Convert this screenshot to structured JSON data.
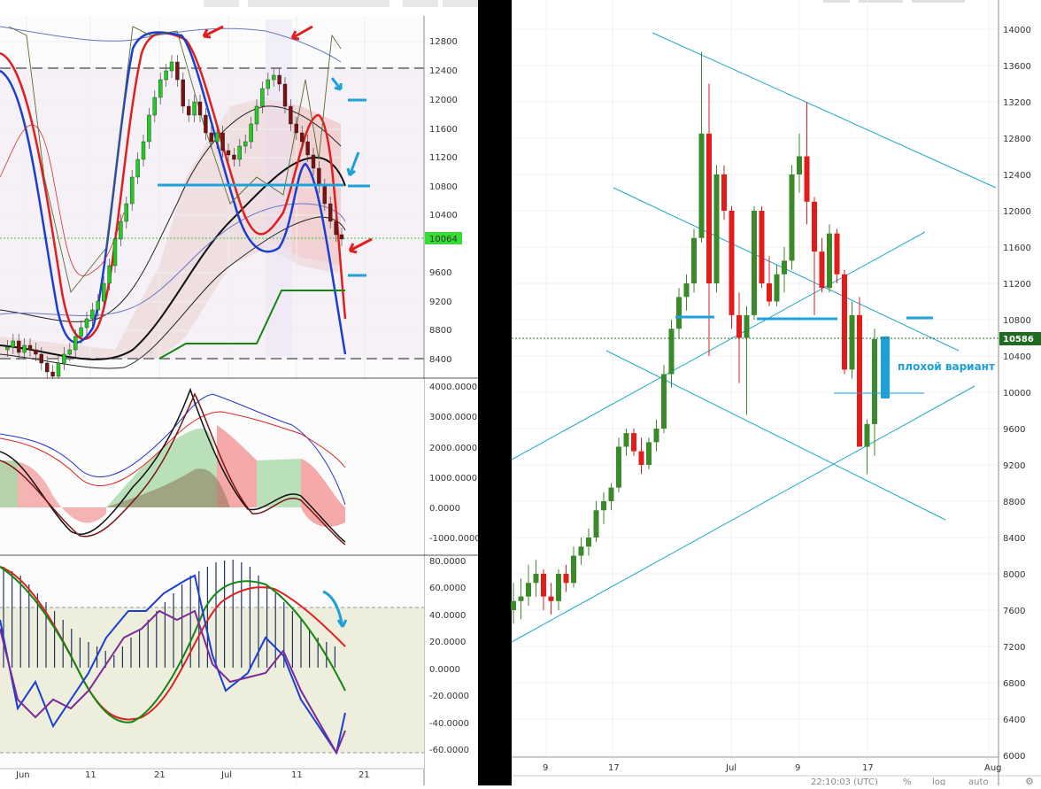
{
  "left_chart": {
    "price_panel": {
      "y_ticks": [
        "12800",
        "12400",
        "12000",
        "11600",
        "11200",
        "10800",
        "10400",
        "10064",
        "9600",
        "9200",
        "8800",
        "8400"
      ],
      "last_price": "10064",
      "ylim": [
        8000,
        13100
      ]
    },
    "macd_panel": {
      "y_ticks": [
        "4000.0000",
        "3000.0000",
        "2000.0000",
        "1000.0000",
        "0.0000",
        "-1000.0000"
      ]
    },
    "stoch_panel": {
      "y_ticks": [
        "80.0000",
        "60.0000",
        "40.0000",
        "20.0000",
        "0.0000",
        "-20.0000",
        "-40.0000",
        "-60.0000"
      ]
    },
    "x_ticks": [
      "Jun",
      "11",
      "21",
      "Jul",
      "11",
      "21"
    ]
  },
  "chart_data": {
    "type": "candlestick",
    "series_name": "",
    "x_labels": [
      "9",
      "17",
      "Jul",
      "9",
      "17",
      "Aug"
    ],
    "y_ticks": [
      "14000",
      "13600",
      "13200",
      "12800",
      "12400",
      "12000",
      "11600",
      "11200",
      "10800",
      "10400",
      "10000",
      "9600",
      "9200",
      "8800",
      "8400",
      "8000",
      "7600",
      "7200",
      "6800",
      "6400",
      "6000"
    ],
    "ylim": [
      5800,
      14200
    ],
    "last_price": "10586",
    "annotation": "плохой вариант",
    "status": {
      "time": "22:10:03 (UTC)",
      "percent": "%",
      "log": "log",
      "auto": "auto"
    },
    "candles": [
      {
        "o": 7600,
        "h": 7900,
        "l": 7450,
        "c": 7700
      },
      {
        "o": 7700,
        "h": 7950,
        "l": 7500,
        "c": 7750
      },
      {
        "o": 7750,
        "h": 8100,
        "l": 7650,
        "c": 7900
      },
      {
        "o": 7900,
        "h": 8150,
        "l": 7750,
        "c": 8000
      },
      {
        "o": 8000,
        "h": 8050,
        "l": 7600,
        "c": 7750
      },
      {
        "o": 7750,
        "h": 7900,
        "l": 7550,
        "c": 7700
      },
      {
        "o": 7700,
        "h": 8050,
        "l": 7600,
        "c": 8000
      },
      {
        "o": 8000,
        "h": 8100,
        "l": 7800,
        "c": 7900
      },
      {
        "o": 7900,
        "h": 8300,
        "l": 7850,
        "c": 8200
      },
      {
        "o": 8200,
        "h": 8400,
        "l": 8100,
        "c": 8300
      },
      {
        "o": 8300,
        "h": 8500,
        "l": 8200,
        "c": 8400
      },
      {
        "o": 8400,
        "h": 8800,
        "l": 8350,
        "c": 8700
      },
      {
        "o": 8700,
        "h": 8900,
        "l": 8550,
        "c": 8800
      },
      {
        "o": 8800,
        "h": 9000,
        "l": 8700,
        "c": 8950
      },
      {
        "o": 8950,
        "h": 9500,
        "l": 8900,
        "c": 9400
      },
      {
        "o": 9400,
        "h": 9600,
        "l": 9300,
        "c": 9550
      },
      {
        "o": 9550,
        "h": 9600,
        "l": 9300,
        "c": 9350
      },
      {
        "o": 9350,
        "h": 9500,
        "l": 9100,
        "c": 9200
      },
      {
        "o": 9200,
        "h": 9500,
        "l": 9150,
        "c": 9450
      },
      {
        "o": 9450,
        "h": 9700,
        "l": 9350,
        "c": 9600
      },
      {
        "o": 9600,
        "h": 10300,
        "l": 9550,
        "c": 10200
      },
      {
        "o": 10200,
        "h": 10800,
        "l": 10050,
        "c": 10700
      },
      {
        "o": 10700,
        "h": 11150,
        "l": 10600,
        "c": 11050
      },
      {
        "o": 11050,
        "h": 11300,
        "l": 10900,
        "c": 11200
      },
      {
        "o": 11200,
        "h": 11800,
        "l": 11100,
        "c": 11700
      },
      {
        "o": 11700,
        "h": 13750,
        "l": 11650,
        "c": 12850
      },
      {
        "o": 12850,
        "h": 13400,
        "l": 10400,
        "c": 11200
      },
      {
        "o": 11200,
        "h": 12500,
        "l": 11100,
        "c": 12400
      },
      {
        "o": 12400,
        "h": 12500,
        "l": 11900,
        "c": 12000
      },
      {
        "o": 12000,
        "h": 12050,
        "l": 10700,
        "c": 10850
      },
      {
        "o": 10850,
        "h": 11100,
        "l": 10100,
        "c": 10600
      },
      {
        "o": 10600,
        "h": 10950,
        "l": 9750,
        "c": 10850
      },
      {
        "o": 10850,
        "h": 12050,
        "l": 10800,
        "c": 12000
      },
      {
        "o": 12000,
        "h": 12050,
        "l": 11150,
        "c": 11200
      },
      {
        "o": 11200,
        "h": 11500,
        "l": 10950,
        "c": 11000
      },
      {
        "o": 11000,
        "h": 11400,
        "l": 10950,
        "c": 11300
      },
      {
        "o": 11300,
        "h": 11600,
        "l": 11100,
        "c": 11450
      },
      {
        "o": 11450,
        "h": 12500,
        "l": 11350,
        "c": 12400
      },
      {
        "o": 12400,
        "h": 12850,
        "l": 12200,
        "c": 12600
      },
      {
        "o": 12600,
        "h": 13200,
        "l": 11850,
        "c": 12100
      },
      {
        "o": 12100,
        "h": 12150,
        "l": 10850,
        "c": 11550
      },
      {
        "o": 11550,
        "h": 11700,
        "l": 11100,
        "c": 11150
      },
      {
        "o": 11150,
        "h": 11850,
        "l": 11100,
        "c": 11750
      },
      {
        "o": 11750,
        "h": 11800,
        "l": 11200,
        "c": 11300
      },
      {
        "o": 11300,
        "h": 11350,
        "l": 10200,
        "c": 10250
      },
      {
        "o": 10250,
        "h": 11000,
        "l": 10150,
        "c": 10850
      },
      {
        "o": 10850,
        "h": 11050,
        "l": 9400,
        "c": 9400
      },
      {
        "o": 9400,
        "h": 9700,
        "l": 9100,
        "c": 9650
      },
      {
        "o": 9650,
        "h": 10700,
        "l": 9300,
        "c": 10586
      }
    ]
  }
}
